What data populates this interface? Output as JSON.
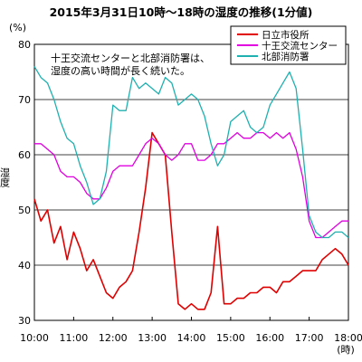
{
  "chart_data": {
    "type": "line",
    "title": "2015年3月31日10時〜18時の湿度の推移(1分値)",
    "ylabel": "湿度",
    "y_unit": "(%)",
    "x_unit": "(時)",
    "ylim": [
      30,
      80
    ],
    "xlim": [
      "10:00",
      "18:00"
    ],
    "y_ticks": [
      "30",
      "40",
      "50",
      "60",
      "70",
      "80"
    ],
    "x_ticks": [
      "10:00",
      "11:00",
      "12:00",
      "13:00",
      "14:00",
      "15:00",
      "16:00",
      "17:00",
      "18:00"
    ],
    "grid": true,
    "legend_position": "top-right",
    "annotation": [
      "十王交流センターと北部消防署は、",
      "湿度の高い時間が長く続いた。"
    ],
    "series": [
      {
        "name": "日立市役所",
        "color": "#e00000",
        "x": [
          "10:00",
          "10:10",
          "10:20",
          "10:30",
          "10:40",
          "10:50",
          "11:00",
          "11:10",
          "11:20",
          "11:30",
          "11:40",
          "11:50",
          "12:00",
          "12:10",
          "12:20",
          "12:30",
          "12:40",
          "12:50",
          "13:00",
          "13:10",
          "13:20",
          "13:30",
          "13:40",
          "13:50",
          "14:00",
          "14:10",
          "14:20",
          "14:30",
          "14:40",
          "14:50",
          "15:00",
          "15:10",
          "15:20",
          "15:30",
          "15:40",
          "15:50",
          "16:00",
          "16:10",
          "16:20",
          "16:30",
          "16:40",
          "16:50",
          "17:00",
          "17:10",
          "17:20",
          "17:30",
          "17:40",
          "17:50",
          "18:00"
        ],
        "values": [
          52,
          48,
          50,
          44,
          47,
          41,
          46,
          43,
          39,
          41,
          38,
          35,
          34,
          36,
          37,
          39,
          46,
          54,
          64,
          62,
          60,
          46,
          33,
          32,
          33,
          32,
          32,
          35,
          47,
          33,
          33,
          34,
          34,
          35,
          35,
          36,
          36,
          35,
          37,
          37,
          38,
          39,
          39,
          39,
          41,
          42,
          43,
          42,
          40
        ]
      },
      {
        "name": "十王交流センター",
        "color": "#e000e0",
        "x": [
          "10:00",
          "10:10",
          "10:20",
          "10:30",
          "10:40",
          "10:50",
          "11:00",
          "11:10",
          "11:20",
          "11:30",
          "11:40",
          "11:50",
          "12:00",
          "12:10",
          "12:20",
          "12:30",
          "12:40",
          "12:50",
          "13:00",
          "13:10",
          "13:20",
          "13:30",
          "13:40",
          "13:50",
          "14:00",
          "14:10",
          "14:20",
          "14:30",
          "14:40",
          "14:50",
          "15:00",
          "15:10",
          "15:20",
          "15:30",
          "15:40",
          "15:50",
          "16:00",
          "16:10",
          "16:20",
          "16:30",
          "16:40",
          "16:50",
          "17:00",
          "17:10",
          "17:20",
          "17:30",
          "17:40",
          "17:50",
          "18:00"
        ],
        "values": [
          62,
          62,
          61,
          60,
          57,
          56,
          56,
          55,
          53,
          52,
          52,
          54,
          57,
          58,
          58,
          58,
          60,
          62,
          63,
          62,
          60,
          59,
          60,
          62,
          62,
          59,
          59,
          60,
          62,
          62,
          63,
          64,
          63,
          63,
          64,
          64,
          63,
          64,
          63,
          64,
          61,
          56,
          48,
          45,
          45,
          46,
          47,
          48,
          48
        ]
      },
      {
        "name": "北部消防署",
        "color": "#20b0b0",
        "x": [
          "10:00",
          "10:10",
          "10:20",
          "10:30",
          "10:40",
          "10:50",
          "11:00",
          "11:10",
          "11:20",
          "11:30",
          "11:40",
          "11:50",
          "12:00",
          "12:10",
          "12:20",
          "12:30",
          "12:40",
          "12:50",
          "13:00",
          "13:10",
          "13:20",
          "13:30",
          "13:40",
          "13:50",
          "14:00",
          "14:10",
          "14:20",
          "14:30",
          "14:40",
          "14:50",
          "15:00",
          "15:10",
          "15:20",
          "15:30",
          "15:40",
          "15:50",
          "16:00",
          "16:10",
          "16:20",
          "16:30",
          "16:40",
          "16:50",
          "17:00",
          "17:10",
          "17:20",
          "17:30",
          "17:40",
          "17:50",
          "18:00"
        ],
        "values": [
          76,
          74,
          73,
          70,
          66,
          63,
          62,
          58,
          55,
          51,
          52,
          57,
          69,
          68,
          68,
          74,
          72,
          73,
          72,
          71,
          74,
          73,
          69,
          70,
          71,
          70,
          67,
          62,
          58,
          60,
          66,
          67,
          68,
          65,
          64,
          65,
          69,
          71,
          73,
          75,
          72,
          61,
          49,
          46,
          45,
          45,
          46,
          46,
          45
        ]
      }
    ]
  }
}
